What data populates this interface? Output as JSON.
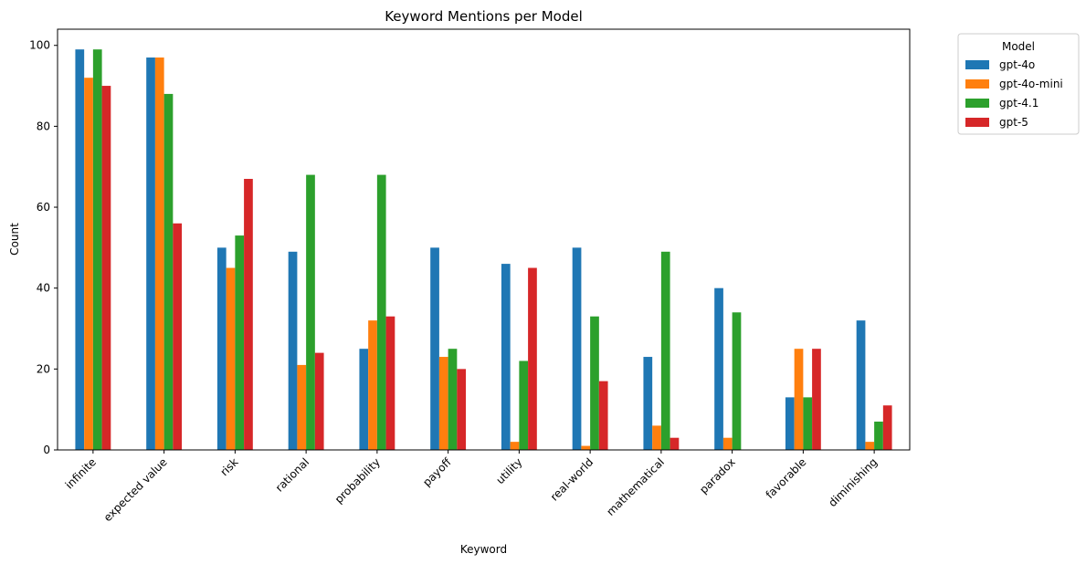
{
  "chart_data": {
    "type": "bar",
    "title": "Keyword Mentions per Model",
    "xlabel": "Keyword",
    "ylabel": "Count",
    "ylim": [
      0,
      104
    ],
    "yticks": [
      0,
      20,
      40,
      60,
      80,
      100
    ],
    "grid": false,
    "legend": {
      "title": "Model",
      "placement": "outside-top-right"
    },
    "categories": [
      "infinite",
      "expected value",
      "risk",
      "rational",
      "probability",
      "payoff",
      "utility",
      "real-world",
      "mathematical",
      "paradox",
      "favorable",
      "diminishing"
    ],
    "series": [
      {
        "name": "gpt-4o",
        "color": "#1f77b4",
        "values": [
          99,
          97,
          50,
          49,
          25,
          50,
          46,
          50,
          23,
          40,
          13,
          32
        ]
      },
      {
        "name": "gpt-4o-mini",
        "color": "#ff7f0e",
        "values": [
          92,
          97,
          45,
          21,
          32,
          23,
          2,
          1,
          6,
          3,
          25,
          2
        ]
      },
      {
        "name": "gpt-4.1",
        "color": "#2ca02c",
        "values": [
          99,
          88,
          53,
          68,
          68,
          25,
          22,
          33,
          49,
          34,
          13,
          7
        ]
      },
      {
        "name": "gpt-5",
        "color": "#d62728",
        "values": [
          90,
          56,
          67,
          24,
          33,
          20,
          45,
          17,
          3,
          0,
          25,
          11
        ]
      }
    ]
  }
}
